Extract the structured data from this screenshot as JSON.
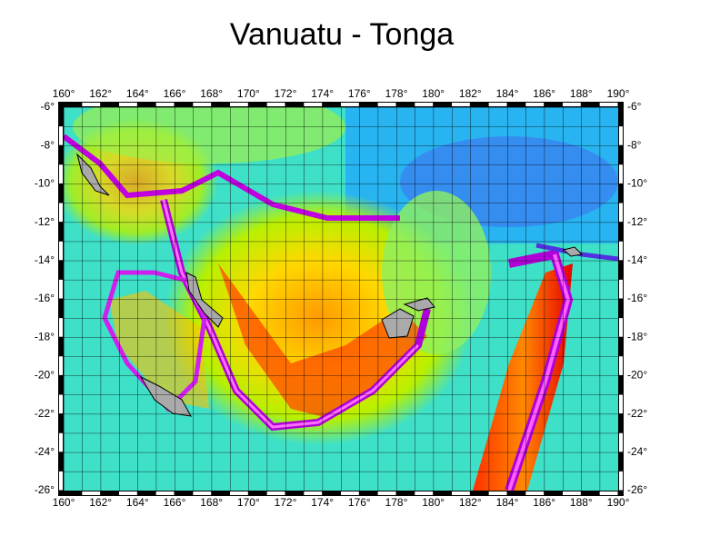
{
  "map": {
    "title": "Vanuatu - Tonga",
    "xlim": [
      160,
      190
    ],
    "ylim": [
      -6,
      -26
    ],
    "xticks": [
      {
        "value": 160,
        "label": "160°"
      },
      {
        "value": 162,
        "label": "162°"
      },
      {
        "value": 164,
        "label": "164°"
      },
      {
        "value": 166,
        "label": "166°"
      },
      {
        "value": 168,
        "label": "168°"
      },
      {
        "value": 170,
        "label": "170°"
      },
      {
        "value": 172,
        "label": "172°"
      },
      {
        "value": 174,
        "label": "174°"
      },
      {
        "value": 176,
        "label": "176°"
      },
      {
        "value": 178,
        "label": "178°"
      },
      {
        "value": 180,
        "label": "180°"
      },
      {
        "value": 182,
        "label": "182°"
      },
      {
        "value": 184,
        "label": "184°"
      },
      {
        "value": 186,
        "label": "186°"
      },
      {
        "value": 188,
        "label": "188°"
      },
      {
        "value": 190,
        "label": "190°"
      }
    ],
    "yticks": [
      {
        "value": -6,
        "label": "-6°"
      },
      {
        "value": -8,
        "label": "-8°"
      },
      {
        "value": -10,
        "label": "-10°"
      },
      {
        "value": -12,
        "label": "-12°"
      },
      {
        "value": -14,
        "label": "-14°"
      },
      {
        "value": -16,
        "label": "-16°"
      },
      {
        "value": -18,
        "label": "-18°"
      },
      {
        "value": -20,
        "label": "-20°"
      },
      {
        "value": -22,
        "label": "-22°"
      },
      {
        "value": -24,
        "label": "-24°"
      },
      {
        "value": -26,
        "label": "-26°"
      }
    ]
  }
}
